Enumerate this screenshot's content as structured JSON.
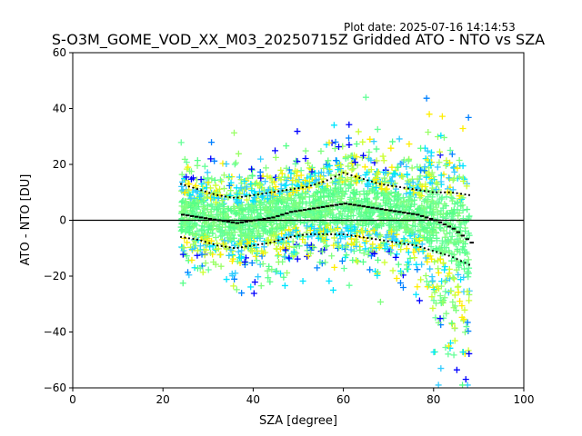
{
  "plot_date": "Plot date: 2025-07-16 14:14:53",
  "chart_data": {
    "type": "scatter",
    "title": "S-O3M_GOME_VOD_XX_M03_20250715Z Gridded ATO - NTO vs SZA",
    "xlabel": "SZA [degree]",
    "ylabel": "ATO - NTO [DU]",
    "xlim": [
      0,
      100
    ],
    "ylim": [
      -60,
      60
    ],
    "x_ticks": [
      0,
      20,
      40,
      60,
      80,
      100
    ],
    "y_ticks": [
      -60,
      -40,
      -20,
      0,
      20,
      40,
      60
    ],
    "x_tick_labels": [
      "0",
      "20",
      "40",
      "60",
      "80",
      "100"
    ],
    "y_tick_labels": [
      "−60",
      "−40",
      "−20",
      "0",
      "20",
      "40",
      "60"
    ],
    "zero_line": 0,
    "grid": false,
    "marker": "+",
    "point_colors": [
      "#66ff99",
      "#7fff7f",
      "#55ff88",
      "#00e5ff",
      "#33ccff",
      "#ffee00",
      "#ccff33",
      "#99ff66",
      "#0080ff",
      "#0000ff"
    ],
    "median_color": "#000000",
    "sza_range": [
      24,
      88
    ],
    "median": {
      "x": [
        24,
        28,
        32,
        36,
        40,
        44,
        48,
        52,
        56,
        60,
        64,
        68,
        72,
        76,
        80,
        84,
        88
      ],
      "y": [
        2,
        1,
        0,
        -1,
        0,
        1,
        3,
        4,
        5,
        6,
        5,
        4,
        3,
        2,
        0,
        -3,
        -8
      ]
    },
    "upper_percentile": {
      "x": [
        24,
        28,
        32,
        36,
        40,
        44,
        48,
        52,
        56,
        60,
        64,
        68,
        72,
        76,
        80,
        84,
        88
      ],
      "y": [
        13,
        11,
        9,
        8,
        9,
        10,
        11,
        12,
        14,
        17,
        15,
        13,
        12,
        11,
        10,
        10,
        9
      ]
    },
    "lower_percentile": {
      "x": [
        24,
        28,
        32,
        36,
        40,
        44,
        48,
        52,
        56,
        60,
        64,
        68,
        72,
        76,
        80,
        84,
        88
      ],
      "y": [
        -6,
        -7,
        -9,
        -10,
        -9,
        -8,
        -6,
        -5,
        -5,
        -5,
        -6,
        -7,
        -8,
        -9,
        -11,
        -13,
        -16
      ]
    }
  }
}
